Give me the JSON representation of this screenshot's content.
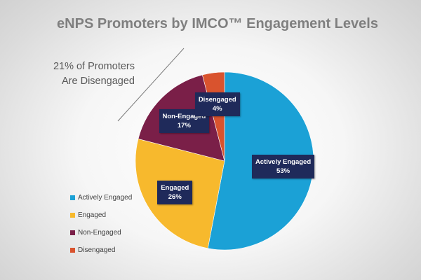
{
  "chart_data": {
    "type": "pie",
    "title": "eNPS Promoters by IMCO™ Engagement Levels",
    "categories": [
      "Actively Engaged",
      "Engaged",
      "Non-Engaged",
      "Disengaged"
    ],
    "values": [
      53,
      26,
      17,
      4
    ],
    "value_labels": [
      "53%",
      "26%",
      "17%",
      "4%"
    ],
    "colors": [
      "#1ba1d6",
      "#f7b92d",
      "#7a1f48",
      "#d9532e"
    ],
    "legend": "bottom-left",
    "annotation": {
      "line1": "21% of Promoters",
      "line2": "Are Disengaged"
    }
  }
}
